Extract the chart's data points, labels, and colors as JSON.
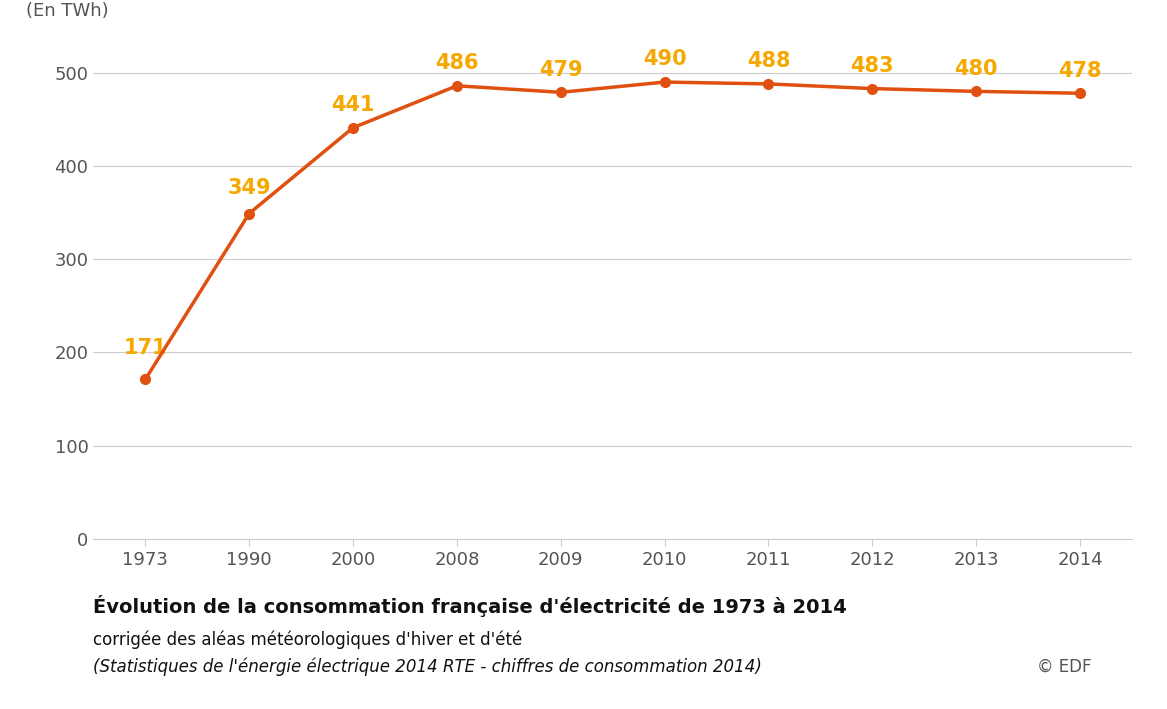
{
  "x_labels": [
    "1973",
    "1990",
    "2000",
    "2008",
    "2009",
    "2010",
    "2011",
    "2012",
    "2013",
    "2014"
  ],
  "y_values": [
    171,
    349,
    441,
    486,
    479,
    490,
    488,
    483,
    480,
    478
  ],
  "line_color": "#E05010",
  "marker_color": "#E05010",
  "label_color": "#F5A800",
  "yticks": [
    0,
    100,
    200,
    300,
    400,
    500
  ],
  "ylim": [
    0,
    540
  ],
  "ylabel": "(En TWh)",
  "background_color": "#FFFFFF",
  "grid_color": "#CCCCCC",
  "tick_color": "#555555",
  "title_bold": "Évolution de la consommation française d'électricité de 1973 à 2014",
  "subtitle1": "corrigée des aléas météorologiques d'hiver et d'été",
  "subtitle2": "(Statistiques de l'énergie électrique 2014 RTE - chiffres de consommation 2014)",
  "copyright": "© EDF",
  "label_fontsize": 15,
  "axis_fontsize": 13,
  "title_fontsize": 14,
  "subtitle_fontsize": 12,
  "label_offsets_x": [
    0,
    0,
    0,
    0,
    0,
    0,
    0,
    0,
    0,
    0
  ],
  "label_offsets_y": [
    18,
    14,
    12,
    12,
    12,
    12,
    12,
    12,
    12,
    12
  ]
}
